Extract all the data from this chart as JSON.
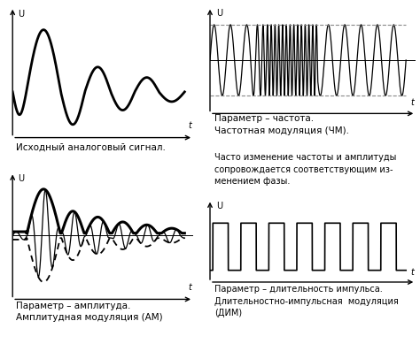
{
  "bg_color": "#ffffff",
  "panel_texts": {
    "top_left": "Исходный аналоговый сигнал.",
    "top_right_line1": "Параметр – частота.",
    "top_right_line2": "Частотная модуляция (ЧМ).",
    "top_right_line3": "Часто изменение частоты и амплитуды",
    "top_right_line4": "сопровождается соответствующим из-",
    "top_right_line5": "менением фазы.",
    "bot_left_line1": "Параметр – амплитуда.",
    "bot_left_line2": "Амплитудная модуляция (АМ)",
    "bot_right_line1": "Параметр – длительность импульса.",
    "bot_right_line2": "Длительностно-импульсная  модуляция",
    "bot_right_line3": "(ДИМ)"
  }
}
